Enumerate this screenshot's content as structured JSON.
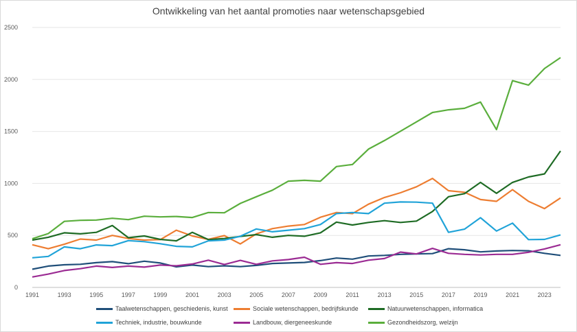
{
  "chart_data": {
    "type": "line",
    "title": "Ontwikkeling van het aantal promoties naar wetenschapsgebied",
    "xlabel": "",
    "ylabel": "",
    "xlim": [
      1991,
      2024
    ],
    "ylim": [
      0,
      2500
    ],
    "x_ticks": [
      "1991",
      "1993",
      "1995",
      "1997",
      "1999",
      "2001",
      "2003",
      "2005",
      "2007",
      "2009",
      "2011",
      "2013",
      "2015",
      "2017",
      "2019",
      "2021",
      "2023"
    ],
    "y_ticks": [
      "0",
      "500",
      "1000",
      "1500",
      "2000",
      "2500"
    ],
    "grid": "horizontal",
    "legend_position": "bottom",
    "x": [
      1991,
      1992,
      1993,
      1994,
      1995,
      1996,
      1997,
      1998,
      1999,
      2000,
      2001,
      2002,
      2003,
      2004,
      2005,
      2006,
      2007,
      2008,
      2009,
      2010,
      2011,
      2012,
      2013,
      2014,
      2015,
      2016,
      2017,
      2018,
      2019,
      2020,
      2021,
      2022,
      2023,
      2024
    ],
    "series": [
      {
        "name": "Taalwetenschappen, geschiedenis, kunst",
        "color": "#1f4e79",
        "values": [
          175,
          205,
          218,
          222,
          238,
          248,
          228,
          252,
          235,
          198,
          215,
          200,
          208,
          200,
          212,
          230,
          235,
          240,
          258,
          282,
          272,
          302,
          308,
          318,
          322,
          325,
          372,
          362,
          342,
          350,
          355,
          352,
          328,
          308
        ]
      },
      {
        "name": "Sociale wetenschappen, bedrijfskunde",
        "color": "#ed7d31",
        "values": [
          410,
          372,
          415,
          465,
          455,
          500,
          470,
          455,
          460,
          550,
          495,
          462,
          498,
          418,
          515,
          565,
          590,
          605,
          675,
          720,
          710,
          800,
          865,
          910,
          968,
          1048,
          930,
          915,
          845,
          828,
          940,
          828,
          758,
          860
        ]
      },
      {
        "name": "Natuurwetenschappen, informatica",
        "color": "#1e6b24",
        "values": [
          455,
          482,
          525,
          515,
          530,
          595,
          478,
          495,
          462,
          448,
          530,
          460,
          470,
          490,
          508,
          482,
          500,
          492,
          525,
          628,
          600,
          625,
          642,
          625,
          638,
          730,
          872,
          902,
          1010,
          905,
          1010,
          1062,
          1092,
          1312
        ]
      },
      {
        "name": "Techniek, industrie, bouwkunde",
        "color": "#20a3d8",
        "values": [
          285,
          298,
          390,
          372,
          408,
          402,
          450,
          440,
          420,
          395,
          390,
          448,
          455,
          492,
          562,
          535,
          550,
          565,
          605,
          710,
          720,
          710,
          810,
          822,
          820,
          810,
          530,
          560,
          670,
          542,
          618,
          460,
          462,
          505
        ]
      },
      {
        "name": "Landbouw, diergeneeskunde",
        "color": "#9b2b93",
        "values": [
          100,
          128,
          162,
          180,
          205,
          192,
          205,
          195,
          215,
          208,
          225,
          262,
          220,
          260,
          222,
          255,
          268,
          290,
          222,
          238,
          230,
          262,
          278,
          340,
          322,
          375,
          328,
          318,
          312,
          318,
          318,
          338,
          370,
          410
        ]
      },
      {
        "name": "Gezondheidszorg, welzijn",
        "color": "#5aae3c",
        "values": [
          468,
          518,
          635,
          645,
          648,
          665,
          652,
          685,
          678,
          682,
          672,
          720,
          718,
          808,
          872,
          935,
          1022,
          1030,
          1022,
          1162,
          1182,
          1330,
          1412,
          1502,
          1592,
          1682,
          1708,
          1722,
          1782,
          1518,
          1988,
          1945,
          2105,
          2210
        ]
      }
    ]
  }
}
